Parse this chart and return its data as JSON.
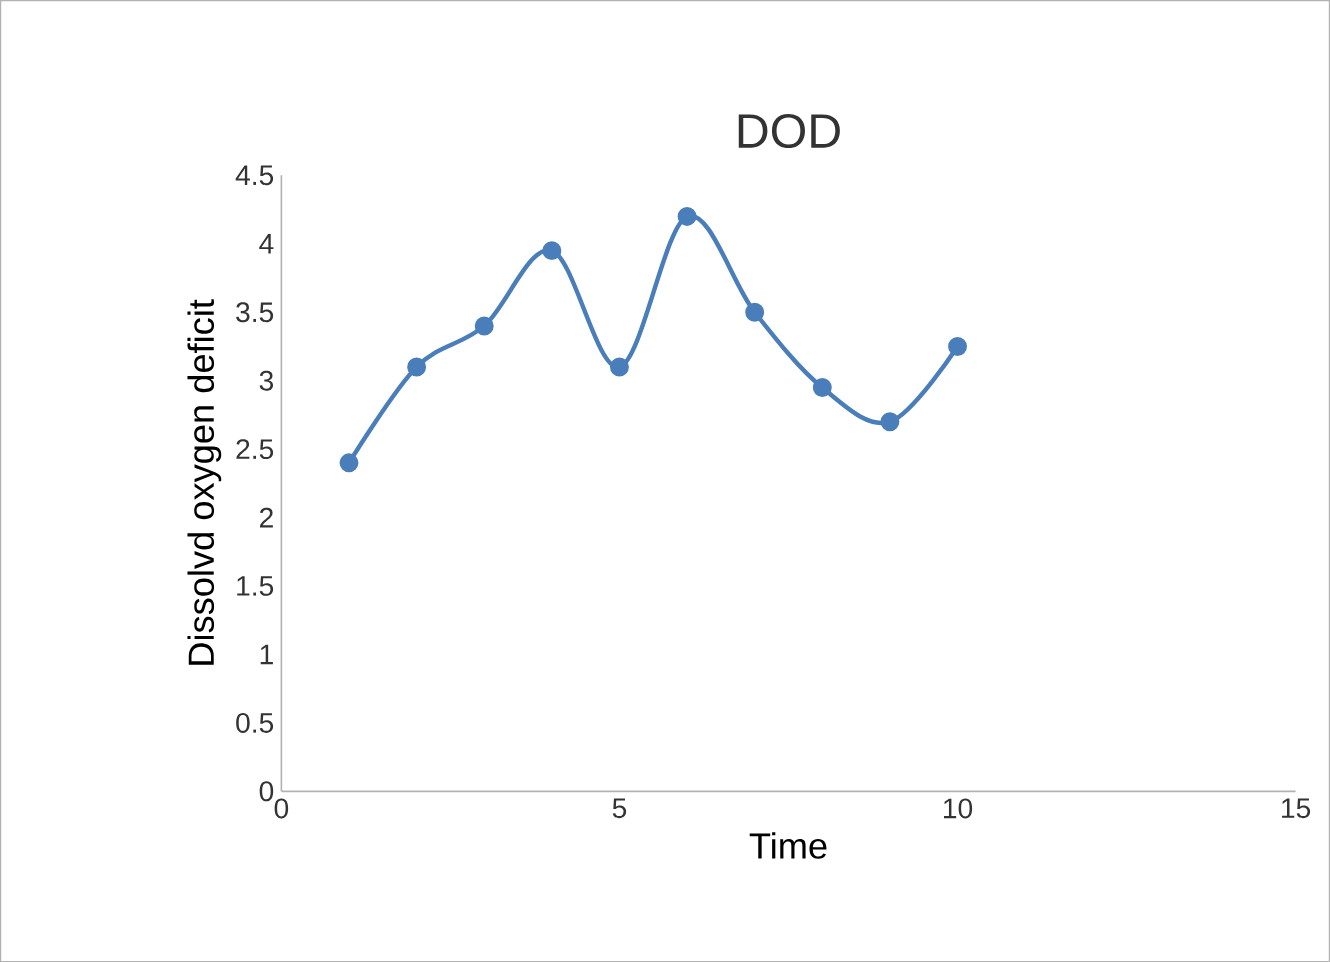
{
  "chart_data": {
    "type": "line",
    "title": "DOD",
    "xlabel": "Time",
    "ylabel": "Dissolvd oxygen deficit",
    "x": [
      1,
      2,
      3,
      4,
      5,
      6,
      7,
      8,
      9,
      10
    ],
    "series": [
      {
        "color": "#4a7ebb",
        "values": [
          2.4,
          3.1,
          3.4,
          3.95,
          3.1,
          4.2,
          3.5,
          2.95,
          2.7,
          3.25
        ]
      }
    ],
    "xlim": [
      0,
      15
    ],
    "xticks": [
      0,
      5,
      10,
      15
    ],
    "ylim": [
      0,
      4.5
    ],
    "yticks": [
      0,
      0.5,
      1,
      1.5,
      2,
      2.5,
      3,
      3.5,
      4,
      4.5
    ],
    "grid": false,
    "marker": "circle"
  }
}
